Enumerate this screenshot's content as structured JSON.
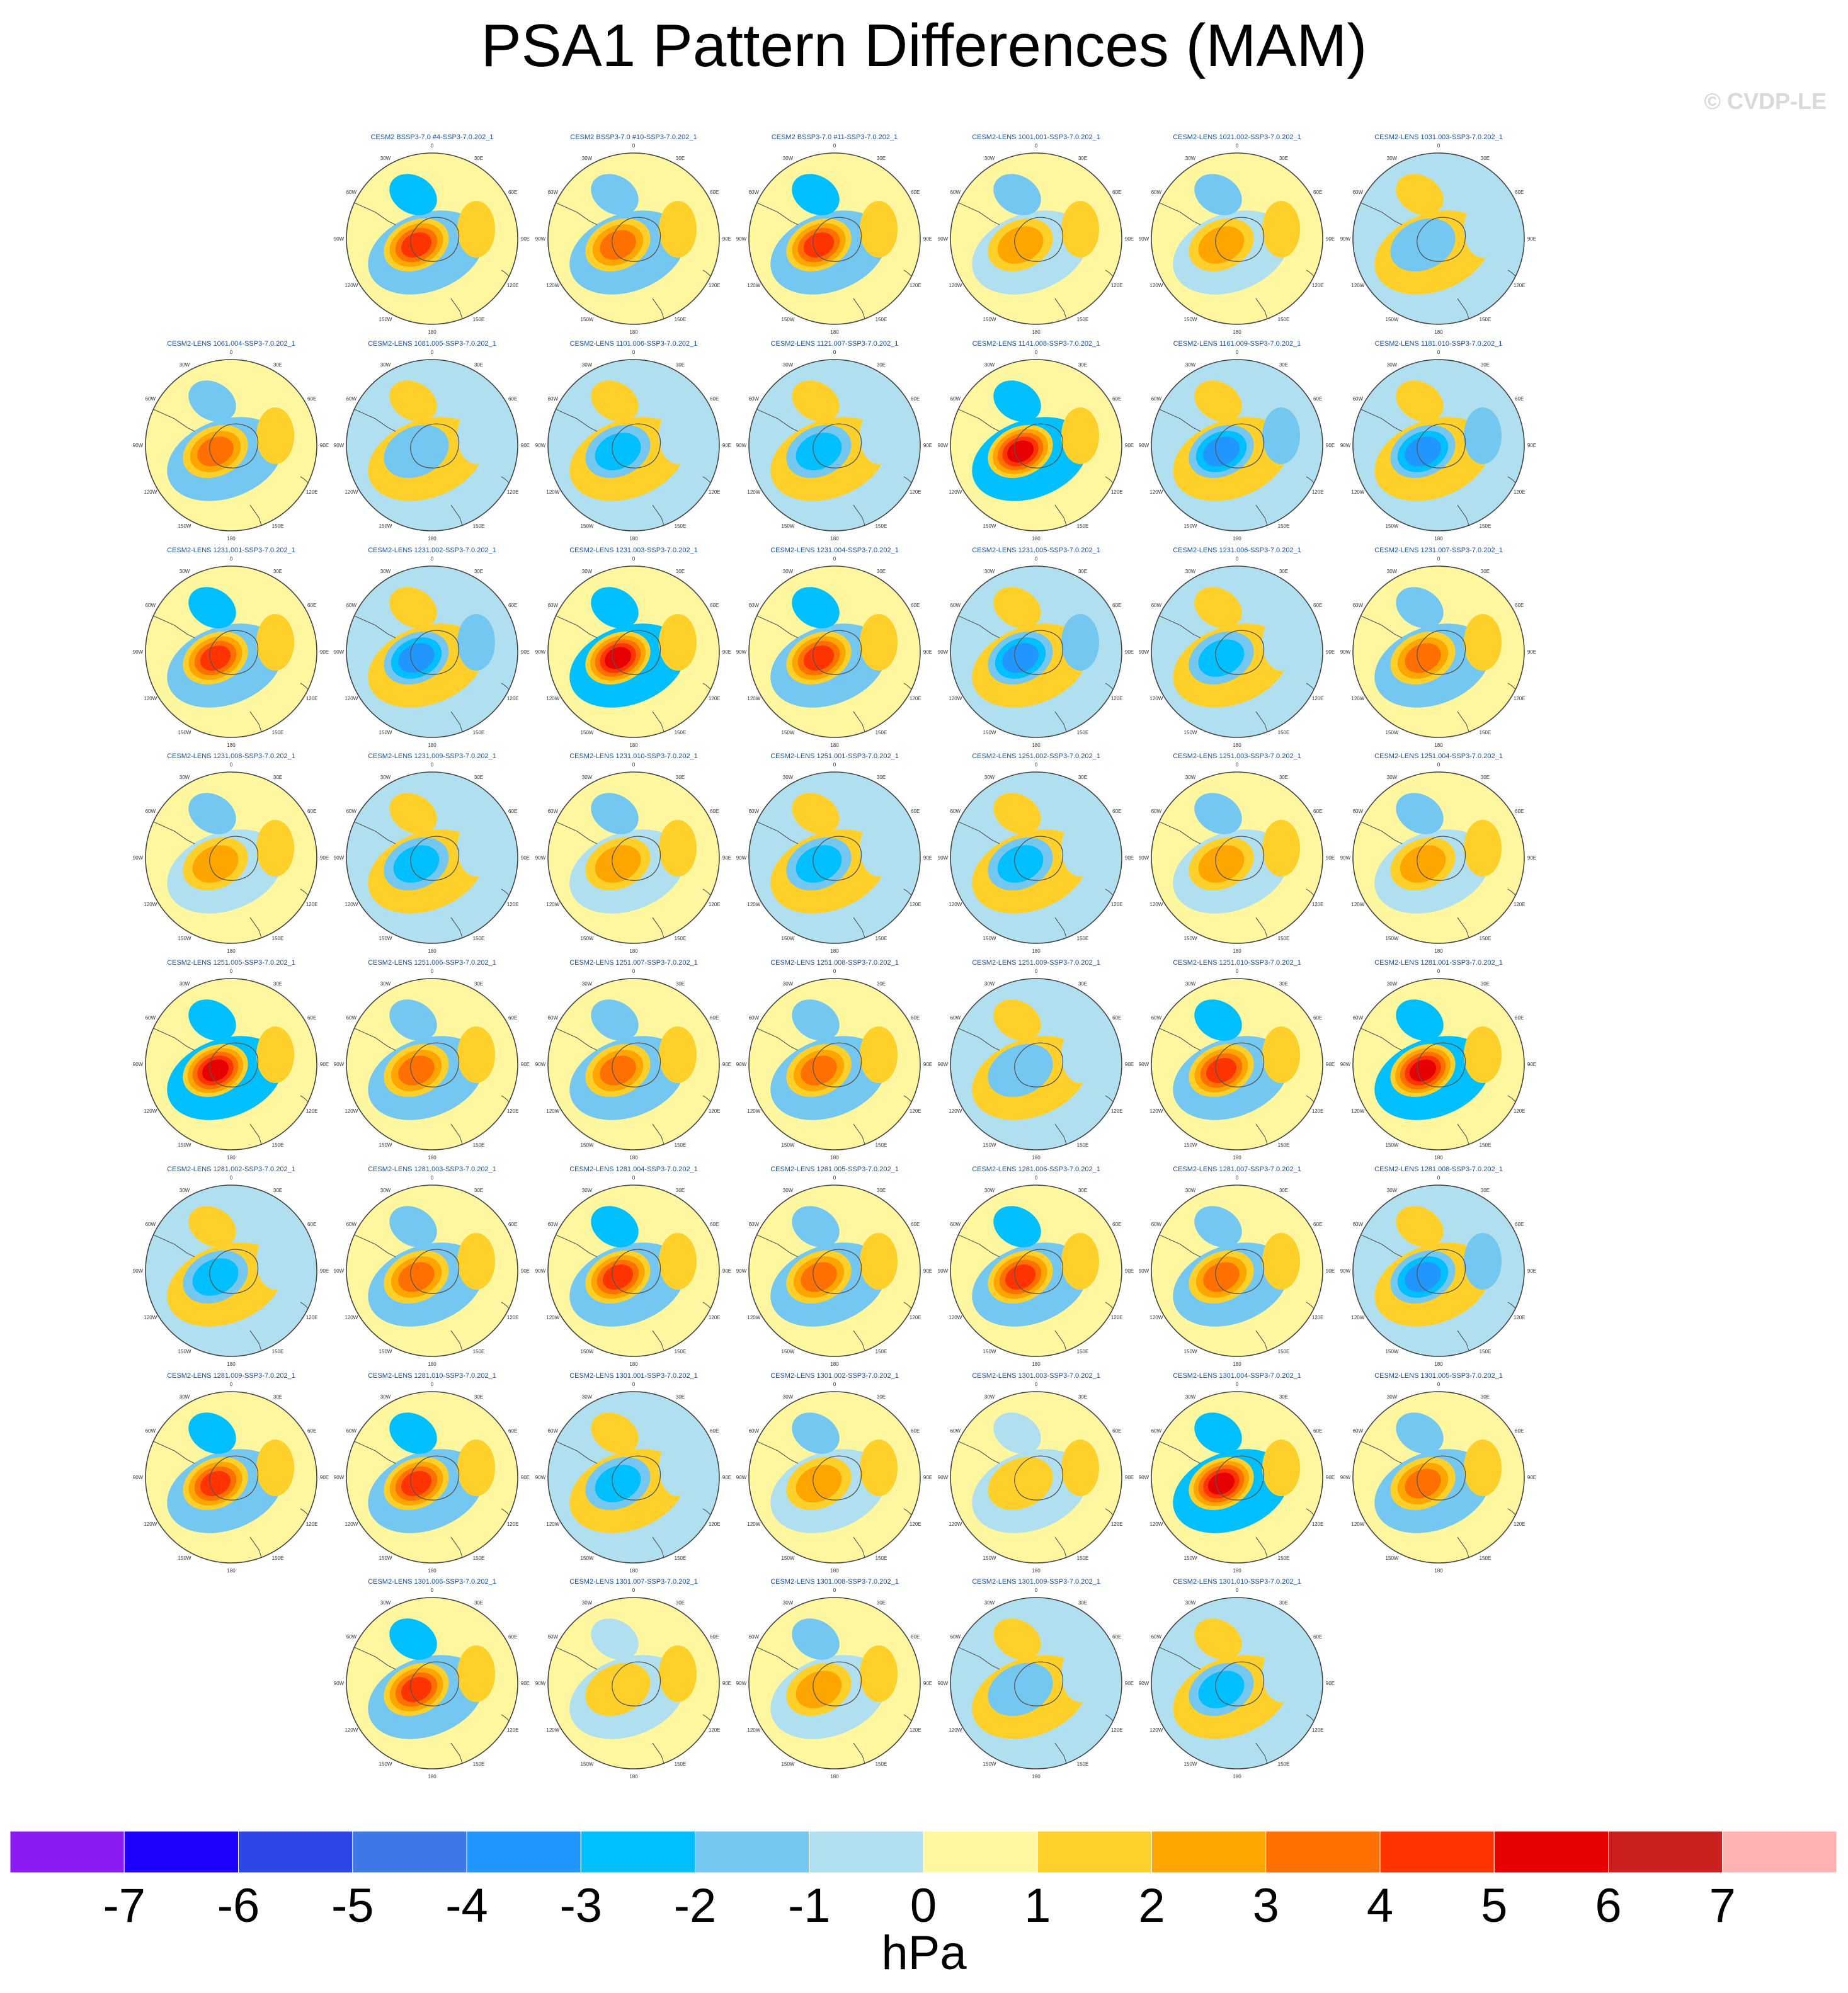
{
  "title": "PSA1 Pattern Differences (MAM)",
  "watermark": "© CVDP-LE",
  "colorbar": {
    "levels": [
      "-7",
      "-6",
      "-5",
      "-4",
      "-3",
      "-2",
      "-1",
      "0",
      "1",
      "2",
      "3",
      "4",
      "5",
      "6",
      "7"
    ],
    "colors": [
      "#8b1af5",
      "#1e00ff",
      "#2d47e6",
      "#3d78e6",
      "#2196ff",
      "#00bfff",
      "#73c7f0",
      "#b0dff0",
      "#fff7a0",
      "#ffd02a",
      "#ffa500",
      "#ff7000",
      "#ff3400",
      "#e60000",
      "#cc1f1f",
      "#ffb2b2"
    ],
    "units": "hPa"
  },
  "chart_data": {
    "type": "polar-contour-panels",
    "title": "PSA1 Pattern Differences (MAM)",
    "units": "hPa",
    "contour_levels": [
      -7,
      -6,
      -5,
      -4,
      -3,
      -2,
      -1,
      0,
      1,
      2,
      3,
      4,
      5,
      6,
      7
    ],
    "lon_labels": [
      "0",
      "30E",
      "60E",
      "90E",
      "120E",
      "150E",
      "180",
      "150W",
      "120W",
      "90W",
      "60W",
      "30W"
    ],
    "panels": [
      {
        "row": 0,
        "col": 1,
        "title": "CESM2 BSSP3-7.0 #4-SSP3-7.0.202_1",
        "amp": 4
      },
      {
        "row": 0,
        "col": 2,
        "title": "CESM2 BSSP3-7.0 #10-SSP3-7.0.202_1",
        "amp": 3
      },
      {
        "row": 0,
        "col": 3,
        "title": "CESM2 BSSP3-7.0 #11-SSP3-7.0.202_1",
        "amp": 4
      },
      {
        "row": 0,
        "col": 4,
        "title": "CESM2-LENS 1001.001-SSP3-7.0.202_1",
        "amp": 2
      },
      {
        "row": 0,
        "col": 5,
        "title": "CESM2-LENS 1021.002-SSP3-7.0.202_1",
        "amp": 2
      },
      {
        "row": 0,
        "col": 6,
        "title": "CESM2-LENS 1031.003-SSP3-7.0.202_1",
        "amp": -1
      },
      {
        "row": 1,
        "col": 0,
        "title": "CESM2-LENS 1061.004-SSP3-7.0.202_1",
        "amp": 3
      },
      {
        "row": 1,
        "col": 1,
        "title": "CESM2-LENS 1081.005-SSP3-7.0.202_1",
        "amp": -1
      },
      {
        "row": 1,
        "col": 2,
        "title": "CESM2-LENS 1101.006-SSP3-7.0.202_1",
        "amp": -2
      },
      {
        "row": 1,
        "col": 3,
        "title": "CESM2-LENS 1121.007-SSP3-7.0.202_1",
        "amp": -2
      },
      {
        "row": 1,
        "col": 4,
        "title": "CESM2-LENS 1141.008-SSP3-7.0.202_1",
        "amp": 5
      },
      {
        "row": 1,
        "col": 5,
        "title": "CESM2-LENS 1161.009-SSP3-7.0.202_1",
        "amp": -3
      },
      {
        "row": 1,
        "col": 6,
        "title": "CESM2-LENS 1181.010-SSP3-7.0.202_1",
        "amp": -3
      },
      {
        "row": 2,
        "col": 0,
        "title": "CESM2-LENS 1231.001-SSP3-7.0.202_1",
        "amp": 4
      },
      {
        "row": 2,
        "col": 1,
        "title": "CESM2-LENS 1231.002-SSP3-7.0.202_1",
        "amp": -3
      },
      {
        "row": 2,
        "col": 2,
        "title": "CESM2-LENS 1231.003-SSP3-7.0.202_1",
        "amp": 5
      },
      {
        "row": 2,
        "col": 3,
        "title": "CESM2-LENS 1231.004-SSP3-7.0.202_1",
        "amp": 4
      },
      {
        "row": 2,
        "col": 4,
        "title": "CESM2-LENS 1231.005-SSP3-7.0.202_1",
        "amp": -3
      },
      {
        "row": 2,
        "col": 5,
        "title": "CESM2-LENS 1231.006-SSP3-7.0.202_1",
        "amp": -2
      },
      {
        "row": 2,
        "col": 6,
        "title": "CESM2-LENS 1231.007-SSP3-7.0.202_1",
        "amp": 3
      },
      {
        "row": 3,
        "col": 0,
        "title": "CESM2-LENS 1231.008-SSP3-7.0.202_1",
        "amp": 2
      },
      {
        "row": 3,
        "col": 1,
        "title": "CESM2-LENS 1231.009-SSP3-7.0.202_1",
        "amp": -2
      },
      {
        "row": 3,
        "col": 2,
        "title": "CESM2-LENS 1231.010-SSP3-7.0.202_1",
        "amp": 2
      },
      {
        "row": 3,
        "col": 3,
        "title": "CESM2-LENS 1251.001-SSP3-7.0.202_1",
        "amp": -2
      },
      {
        "row": 3,
        "col": 4,
        "title": "CESM2-LENS 1251.002-SSP3-7.0.202_1",
        "amp": -2
      },
      {
        "row": 3,
        "col": 5,
        "title": "CESM2-LENS 1251.003-SSP3-7.0.202_1",
        "amp": 2
      },
      {
        "row": 3,
        "col": 6,
        "title": "CESM2-LENS 1251.004-SSP3-7.0.202_1",
        "amp": 2
      },
      {
        "row": 4,
        "col": 0,
        "title": "CESM2-LENS 1251.005-SSP3-7.0.202_1",
        "amp": 5
      },
      {
        "row": 4,
        "col": 1,
        "title": "CESM2-LENS 1251.006-SSP3-7.0.202_1",
        "amp": 3
      },
      {
        "row": 4,
        "col": 2,
        "title": "CESM2-LENS 1251.007-SSP3-7.0.202_1",
        "amp": 3
      },
      {
        "row": 4,
        "col": 3,
        "title": "CESM2-LENS 1251.008-SSP3-7.0.202_1",
        "amp": 3
      },
      {
        "row": 4,
        "col": 4,
        "title": "CESM2-LENS 1251.009-SSP3-7.0.202_1",
        "amp": -1
      },
      {
        "row": 4,
        "col": 5,
        "title": "CESM2-LENS 1251.010-SSP3-7.0.202_1",
        "amp": 4
      },
      {
        "row": 4,
        "col": 6,
        "title": "CESM2-LENS 1281.001-SSP3-7.0.202_1",
        "amp": 5
      },
      {
        "row": 5,
        "col": 0,
        "title": "CESM2-LENS 1281.002-SSP3-7.0.202_1",
        "amp": -2
      },
      {
        "row": 5,
        "col": 1,
        "title": "CESM2-LENS 1281.003-SSP3-7.0.202_1",
        "amp": 3
      },
      {
        "row": 5,
        "col": 2,
        "title": "CESM2-LENS 1281.004-SSP3-7.0.202_1",
        "amp": 4
      },
      {
        "row": 5,
        "col": 3,
        "title": "CESM2-LENS 1281.005-SSP3-7.0.202_1",
        "amp": 3
      },
      {
        "row": 5,
        "col": 4,
        "title": "CESM2-LENS 1281.006-SSP3-7.0.202_1",
        "amp": 4
      },
      {
        "row": 5,
        "col": 5,
        "title": "CESM2-LENS 1281.007-SSP3-7.0.202_1",
        "amp": 3
      },
      {
        "row": 5,
        "col": 6,
        "title": "CESM2-LENS 1281.008-SSP3-7.0.202_1",
        "amp": -3
      },
      {
        "row": 6,
        "col": 0,
        "title": "CESM2-LENS 1281.009-SSP3-7.0.202_1",
        "amp": 4
      },
      {
        "row": 6,
        "col": 1,
        "title": "CESM2-LENS 1281.010-SSP3-7.0.202_1",
        "amp": 4
      },
      {
        "row": 6,
        "col": 2,
        "title": "CESM2-LENS 1301.001-SSP3-7.0.202_1",
        "amp": -2
      },
      {
        "row": 6,
        "col": 3,
        "title": "CESM2-LENS 1301.002-SSP3-7.0.202_1",
        "amp": 2
      },
      {
        "row": 6,
        "col": 4,
        "title": "CESM2-LENS 1301.003-SSP3-7.0.202_1",
        "amp": 1
      },
      {
        "row": 6,
        "col": 5,
        "title": "CESM2-LENS 1301.004-SSP3-7.0.202_1",
        "amp": 5
      },
      {
        "row": 6,
        "col": 6,
        "title": "CESM2-LENS 1301.005-SSP3-7.0.202_1",
        "amp": 3
      },
      {
        "row": 7,
        "col": 1,
        "title": "CESM2-LENS 1301.006-SSP3-7.0.202_1",
        "amp": 4
      },
      {
        "row": 7,
        "col": 2,
        "title": "CESM2-LENS 1301.007-SSP3-7.0.202_1",
        "amp": 1
      },
      {
        "row": 7,
        "col": 3,
        "title": "CESM2-LENS 1301.008-SSP3-7.0.202_1",
        "amp": 2
      },
      {
        "row": 7,
        "col": 4,
        "title": "CESM2-LENS 1301.009-SSP3-7.0.202_1",
        "amp": -1
      },
      {
        "row": 7,
        "col": 5,
        "title": "CESM2-LENS 1301.010-SSP3-7.0.202_1",
        "amp": -2
      }
    ]
  }
}
